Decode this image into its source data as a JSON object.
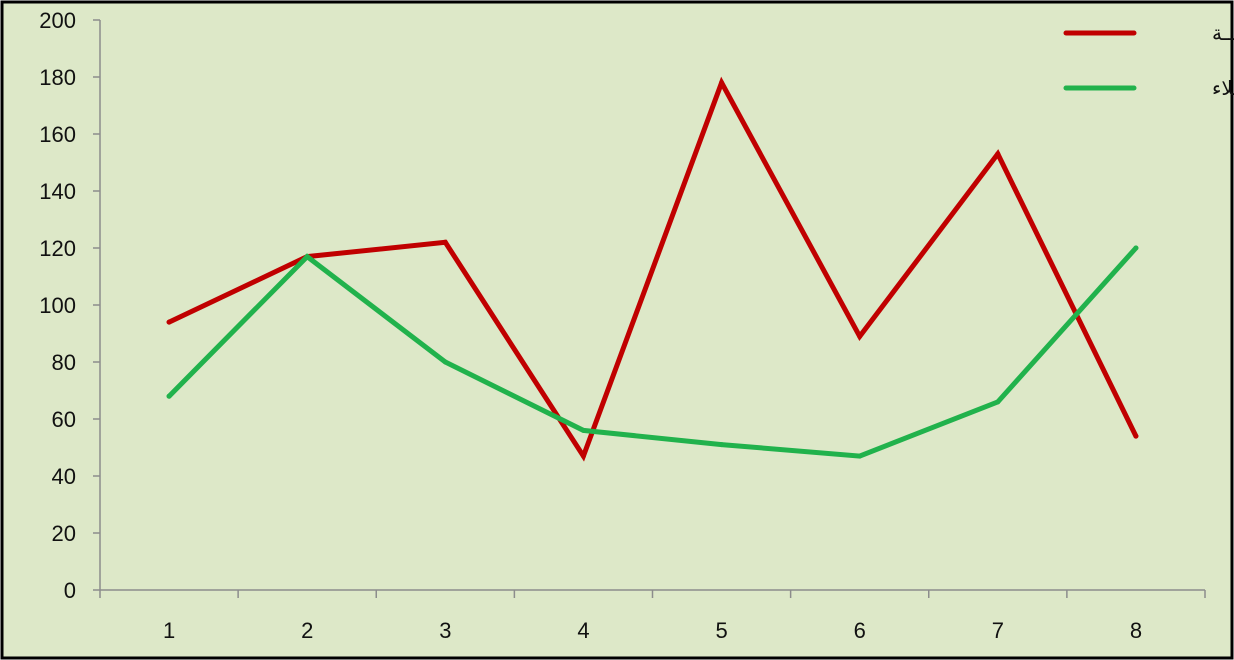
{
  "chart_data": {
    "type": "line",
    "title": "",
    "xlabel": "",
    "ylabel": "",
    "categories": [
      "1",
      "2",
      "3",
      "4",
      "5",
      "6",
      "7",
      "8"
    ],
    "ylim": [
      0,
      200
    ],
    "yticks": [
      0,
      20,
      40,
      60,
      80,
      100,
      120,
      140,
      160,
      180,
      200
    ],
    "grid": false,
    "legend_position": "top-right",
    "background_color": "#dde8c8",
    "series": [
      {
        "name": "مكـــة",
        "color": "#c00000",
        "values": [
          94,
          117,
          122,
          47,
          178,
          89,
          153,
          54
        ]
      },
      {
        "name": "كربلاء",
        "color": "#21b24c",
        "values": [
          68,
          117,
          80,
          56,
          51,
          47,
          66,
          120
        ]
      }
    ]
  }
}
